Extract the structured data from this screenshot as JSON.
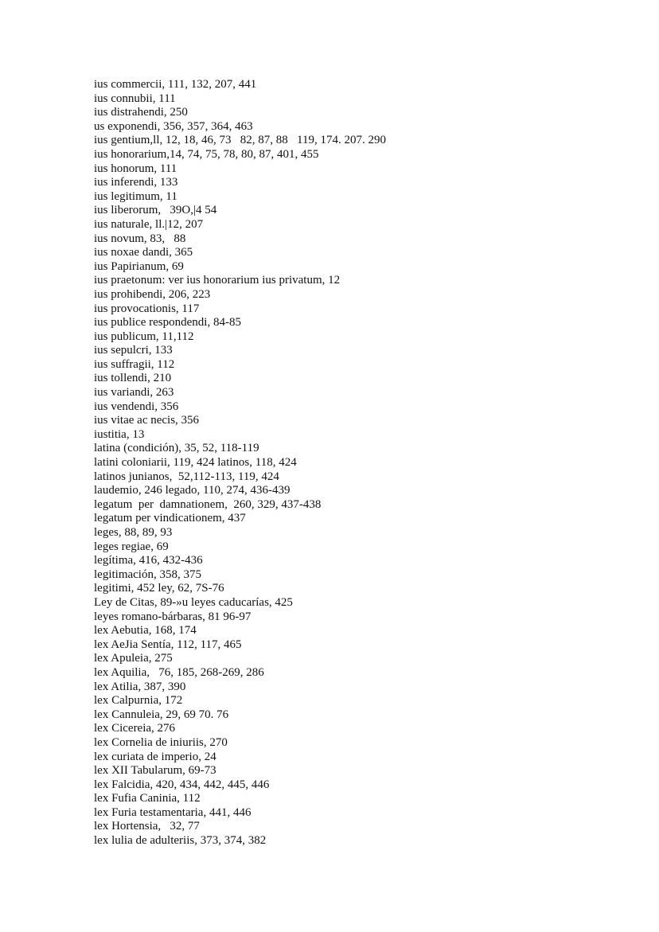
{
  "index_entries": [
    "ius commercii, 111, 132, 207, 441",
    "ius connubii, 111",
    "ius distrahendi, 250",
    "us exponendi, 356, 357, 364, 463",
    "ius gentium,ll, 12, 18, 46, 73   82, 87, 88   119, 174. 207. 290",
    "ius honorarium,14, 74, 75, 78, 80, 87, 401, 455",
    "ius honorum, 111",
    "ius inferendi, 133",
    "ius legitimum, 11",
    "ius liberorum,   39O,|4 54",
    "ius naturale, ll.|12, 207",
    "ius novum, 83,   88",
    "ius noxae dandi, 365",
    "ius Papirianum, 69",
    "ius praetonum: ver ius honorarium ius privatum, 12",
    "ius prohibendi, 206, 223",
    "ius provocationis, 117",
    "ius publice respondendi, 84-85",
    "ius publicum, 11,112",
    "ius sepulcri, 133",
    "ius suffragii, 112",
    "ius tollendi, 210",
    "ius variandi, 263",
    "ius vendendi, 356",
    "ius vitae ac necis, 356",
    "iustitia, 13",
    "latina (condición), 35, 52, 118-119",
    "latini coloniarii, 119, 424 latinos, 118, 424",
    "latinos junianos,  52,112-113, 119, 424",
    "laudemio, 246 legado, 110, 274, 436-439",
    "legatum  per  damnationem,  260, 329, 437-438",
    "legatum per vindicationem, 437",
    "leges, 88, 89, 93",
    "leges regiae, 69",
    "legítima, 416, 432-436",
    "legitimación, 358, 375",
    "legitimi, 452 ley, 62, 7S-76",
    "Ley de Citas, 89-»u leyes caducarías, 425",
    "leyes romano-bárbaras, 81 96-97",
    "lex Aebutia, 168, 174",
    "lex AeJia Sentía, 112, 117, 465",
    "lex Apuleia, 275",
    "lex Aquilia,   76, 185, 268-269, 286",
    "lex Atilia, 387, 390",
    "lex Calpurnia, 172",
    "lex Cannuleia, 29, 69 70. 76",
    "lex Cicereia, 276",
    "lex Cornelia de iniuriis, 270",
    "lex curiata de imperio, 24",
    "lex XII Tabularum, 69-73",
    "lex Falcidia, 420, 434, 442, 445, 446",
    "lex Fufia Caninia, 112",
    "lex Furia testamentaria, 441, 446",
    "lex Hortensia,   32, 77",
    "lex lulia de adulteriis, 373, 374, 382"
  ]
}
